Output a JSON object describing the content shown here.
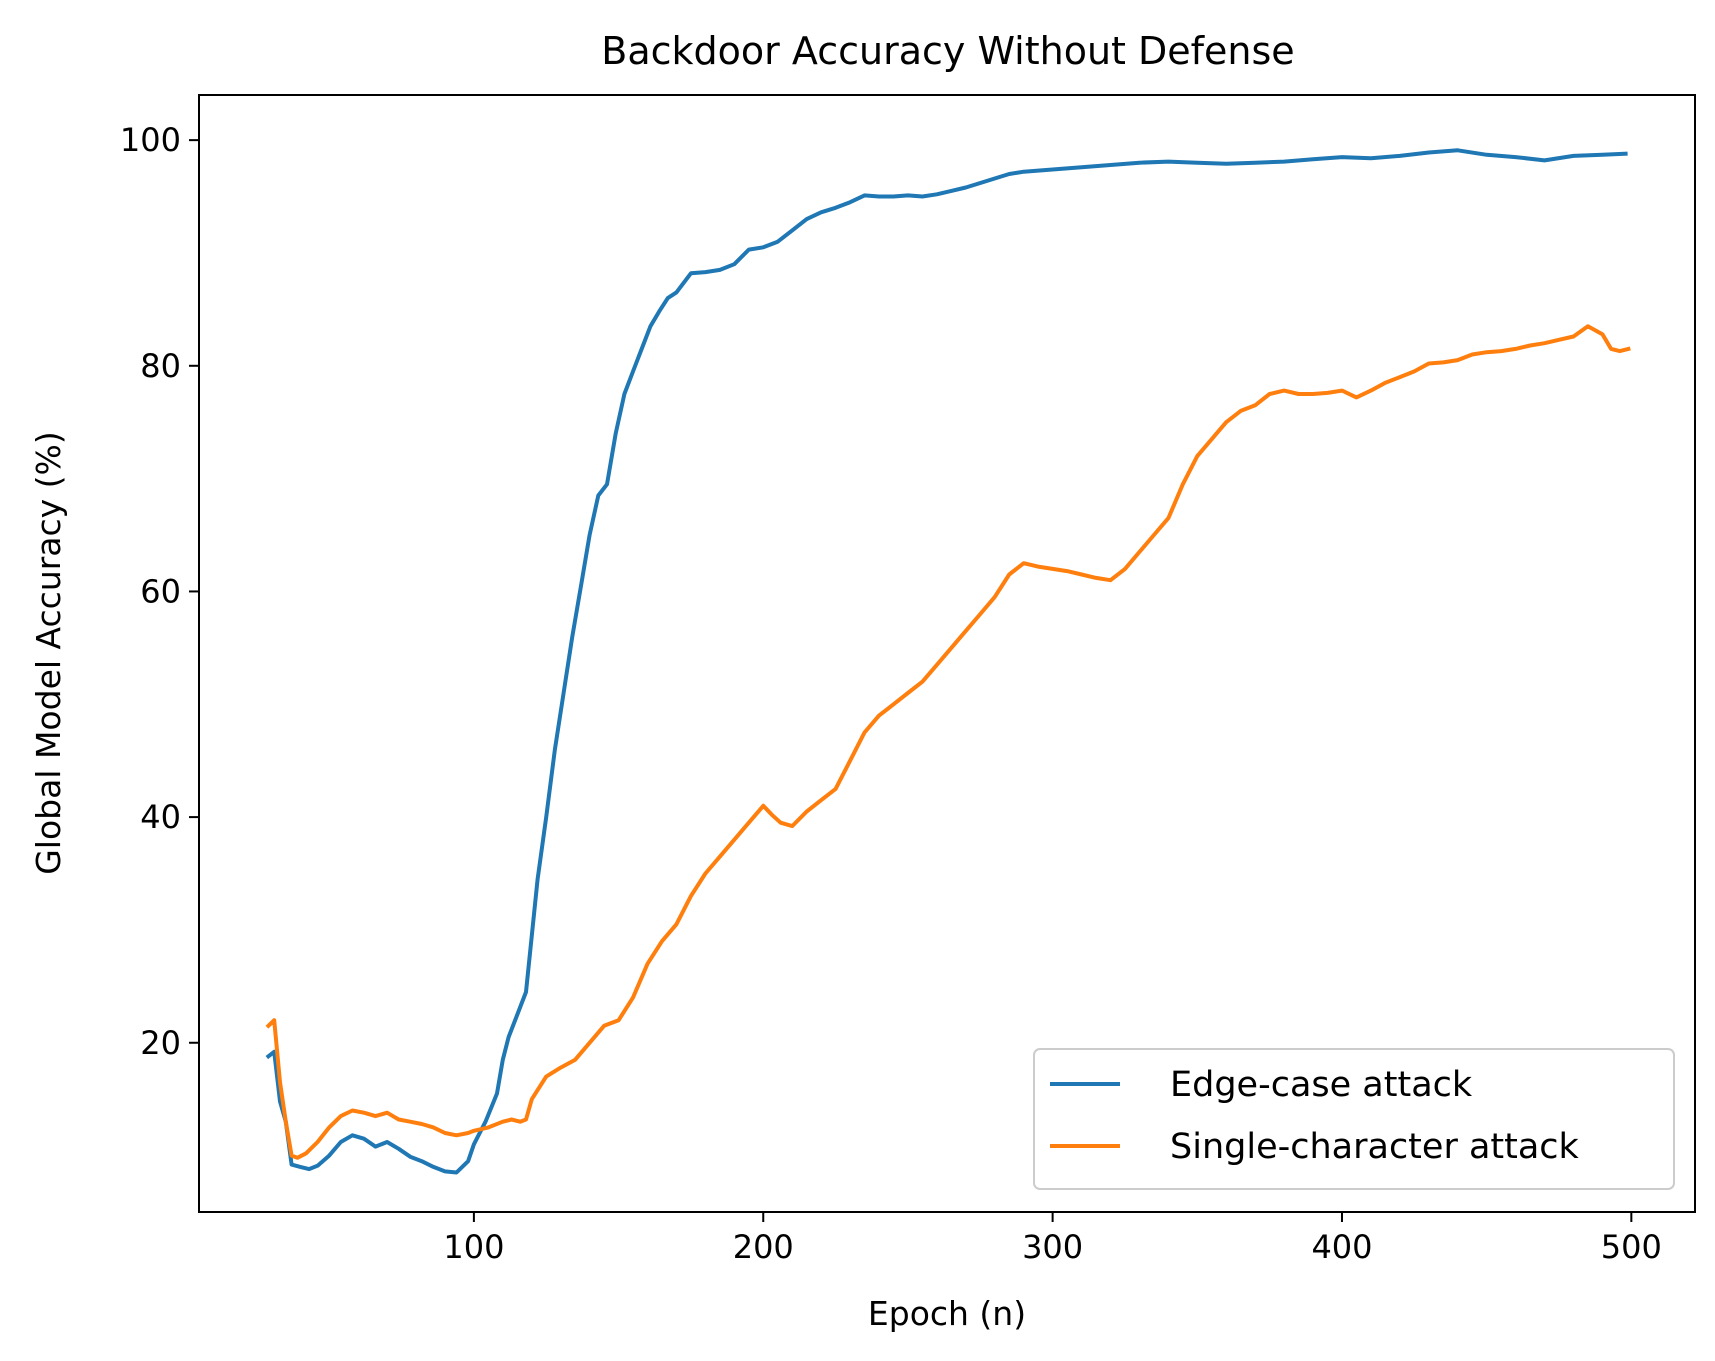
{
  "chart_data": {
    "type": "line",
    "title": "Backdoor Accuracy Without Defense",
    "xlabel": "Epoch (n)",
    "ylabel": "Global Model Accuracy (%)",
    "xlim": [
      5,
      522
    ],
    "ylim": [
      5,
      104
    ],
    "xticks": [
      100,
      200,
      300,
      400,
      500
    ],
    "yticks": [
      20,
      40,
      60,
      80,
      100
    ],
    "grid": false,
    "legend": "lower-right",
    "series": [
      {
        "name": "Edge-case attack",
        "color": "#1f77b4",
        "x": [
          29,
          31,
          33,
          35,
          37,
          40,
          43,
          46,
          50,
          54,
          58,
          62,
          66,
          70,
          74,
          78,
          82,
          86,
          90,
          94,
          98,
          100,
          104,
          108,
          110,
          112,
          115,
          118,
          120,
          122,
          125,
          128,
          131,
          134,
          137,
          140,
          143,
          146,
          149,
          152,
          155,
          158,
          161,
          164,
          167,
          170,
          175,
          180,
          185,
          190,
          195,
          200,
          205,
          210,
          215,
          220,
          225,
          230,
          235,
          240,
          245,
          250,
          255,
          260,
          265,
          270,
          275,
          280,
          285,
          290,
          300,
          310,
          320,
          330,
          340,
          350,
          360,
          370,
          380,
          390,
          400,
          410,
          420,
          430,
          440,
          450,
          460,
          470,
          480,
          490,
          498
        ],
        "y": [
          18.8,
          19.2,
          14.8,
          13.0,
          9.2,
          9.0,
          8.8,
          9.1,
          10.0,
          11.2,
          11.8,
          11.5,
          10.8,
          11.2,
          10.6,
          9.9,
          9.5,
          9.0,
          8.6,
          8.5,
          9.5,
          11.0,
          13.0,
          15.5,
          18.5,
          20.5,
          22.5,
          24.5,
          29.5,
          34.5,
          40.0,
          46.0,
          51.0,
          56.0,
          60.5,
          65.0,
          68.5,
          69.5,
          74.0,
          77.5,
          79.5,
          81.5,
          83.5,
          84.8,
          86.0,
          86.5,
          88.2,
          88.3,
          88.5,
          89.0,
          90.3,
          90.5,
          91.0,
          92.0,
          93.0,
          93.6,
          94.0,
          94.5,
          95.1,
          95.0,
          95.0,
          95.1,
          95.0,
          95.2,
          95.5,
          95.8,
          96.2,
          96.6,
          97.0,
          97.2,
          97.4,
          97.6,
          97.8,
          98.0,
          98.1,
          98.0,
          97.9,
          98.0,
          98.1,
          98.3,
          98.5,
          98.4,
          98.6,
          98.9,
          99.1,
          98.7,
          98.5,
          98.2,
          98.6,
          98.7,
          98.8
        ]
      },
      {
        "name": "Single-character attack",
        "color": "#ff7f0e",
        "x": [
          29,
          31,
          33,
          35,
          37,
          39,
          42,
          46,
          50,
          54,
          58,
          62,
          66,
          70,
          74,
          78,
          82,
          86,
          90,
          94,
          98,
          100,
          105,
          110,
          113,
          116,
          118,
          120,
          125,
          130,
          135,
          140,
          145,
          150,
          155,
          160,
          165,
          170,
          175,
          180,
          185,
          190,
          195,
          200,
          203,
          206,
          210,
          215,
          220,
          225,
          230,
          235,
          240,
          245,
          250,
          255,
          260,
          265,
          270,
          275,
          280,
          285,
          290,
          295,
          300,
          305,
          310,
          315,
          320,
          325,
          330,
          335,
          340,
          345,
          350,
          355,
          360,
          365,
          370,
          375,
          380,
          385,
          390,
          395,
          400,
          405,
          410,
          415,
          420,
          425,
          430,
          435,
          440,
          445,
          450,
          455,
          460,
          465,
          470,
          475,
          480,
          485,
          490,
          493,
          496,
          499
        ],
        "y": [
          21.5,
          22.0,
          16.5,
          13.0,
          10.0,
          9.8,
          10.2,
          11.2,
          12.5,
          13.5,
          14.0,
          13.8,
          13.5,
          13.8,
          13.2,
          13.0,
          12.8,
          12.5,
          12.0,
          11.8,
          12.0,
          12.2,
          12.5,
          13.0,
          13.2,
          13.0,
          13.2,
          15.0,
          17.0,
          17.8,
          18.5,
          20.0,
          21.5,
          22.0,
          24.0,
          27.0,
          29.0,
          30.5,
          33.0,
          35.0,
          36.5,
          38.0,
          39.5,
          41.0,
          40.2,
          39.5,
          39.2,
          40.5,
          41.5,
          42.5,
          45.0,
          47.5,
          49.0,
          50.0,
          51.0,
          52.0,
          53.5,
          55.0,
          56.5,
          58.0,
          59.5,
          61.5,
          62.5,
          62.2,
          62.0,
          61.8,
          61.5,
          61.2,
          61.0,
          62.0,
          63.5,
          65.0,
          66.5,
          69.5,
          72.0,
          73.5,
          75.0,
          76.0,
          76.5,
          77.5,
          77.8,
          77.5,
          77.5,
          77.6,
          77.8,
          77.2,
          77.8,
          78.5,
          79.0,
          79.5,
          80.2,
          80.3,
          80.5,
          81.0,
          81.2,
          81.3,
          81.5,
          81.8,
          82.0,
          82.3,
          82.6,
          83.5,
          82.8,
          81.5,
          81.3,
          81.5
        ]
      }
    ]
  }
}
